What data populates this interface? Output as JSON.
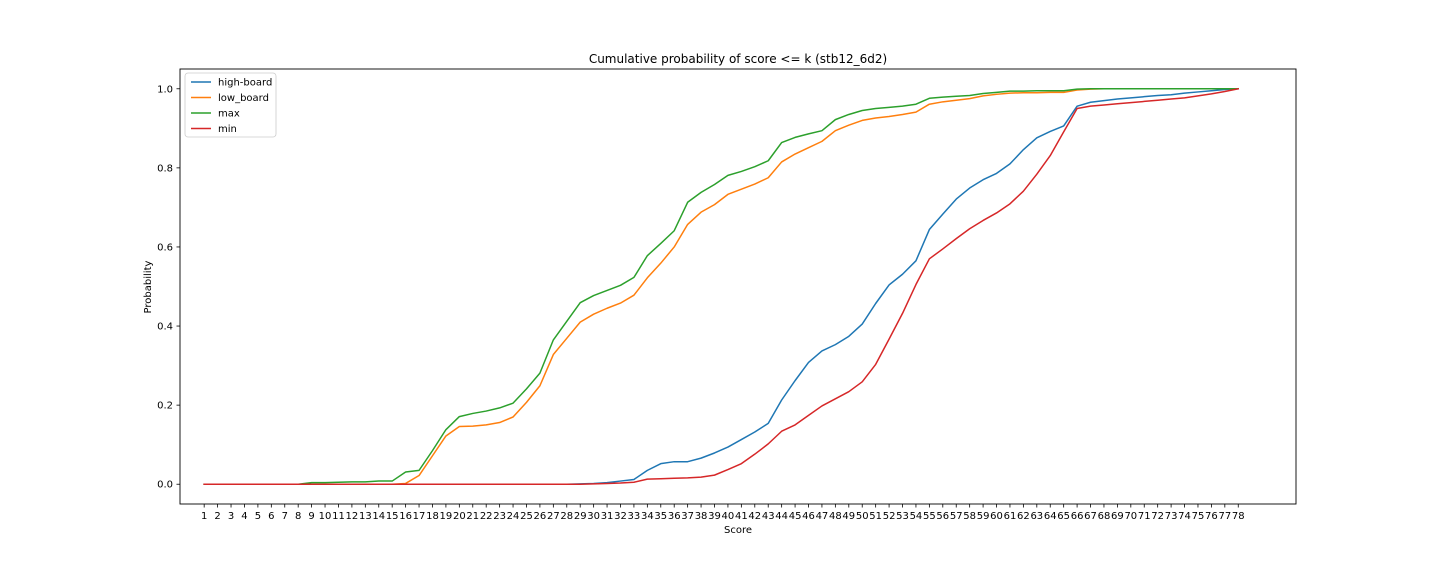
{
  "chart_data": {
    "type": "line",
    "title": "Cumulative probability of score <= k (stb12_6d2)",
    "xlabel": "Score",
    "ylabel": "Probability",
    "x": [
      1,
      2,
      3,
      4,
      5,
      6,
      7,
      8,
      9,
      10,
      11,
      12,
      13,
      14,
      15,
      16,
      17,
      18,
      19,
      20,
      21,
      22,
      23,
      24,
      25,
      26,
      27,
      28,
      29,
      30,
      31,
      32,
      33,
      34,
      35,
      36,
      37,
      38,
      39,
      40,
      41,
      42,
      43,
      44,
      45,
      46,
      47,
      48,
      49,
      50,
      51,
      52,
      53,
      54,
      55,
      56,
      57,
      58,
      59,
      60,
      61,
      62,
      63,
      64,
      65,
      66,
      67,
      68,
      69,
      70,
      71,
      72,
      73,
      74,
      75,
      76,
      77,
      78
    ],
    "xticks": [
      "1",
      "2",
      "3",
      "4",
      "5",
      "6",
      "7",
      "8",
      "9",
      "10",
      "11",
      "12",
      "13",
      "14",
      "15",
      "16",
      "17",
      "18",
      "19",
      "20",
      "21",
      "22",
      "23",
      "24",
      "25",
      "26",
      "27",
      "28",
      "29",
      "30",
      "31",
      "32",
      "33",
      "34",
      "35",
      "36",
      "37",
      "38",
      "39",
      "40",
      "41",
      "42",
      "43",
      "44",
      "45",
      "46",
      "47",
      "48",
      "49",
      "50",
      "51",
      "52",
      "53",
      "54",
      "55",
      "56",
      "57",
      "58",
      "59",
      "60",
      "61",
      "62",
      "63",
      "64",
      "65",
      "66",
      "67",
      "68",
      "69",
      "70",
      "71",
      "72",
      "73",
      "74",
      "75",
      "76",
      "77",
      "78"
    ],
    "yticks": [
      "0.0",
      "0.2",
      "0.4",
      "0.6",
      "0.8",
      "1.0"
    ],
    "ylim": [
      -0.05,
      1.05
    ],
    "xlim": [
      -0.8,
      82.3
    ],
    "grid": false,
    "legend_position": "upper-left",
    "series": [
      {
        "name": "high-board",
        "color": "#1f77b4",
        "values": [
          0,
          0,
          0,
          0,
          0,
          0,
          0,
          0,
          0,
          0,
          0,
          0,
          0,
          0,
          0,
          0,
          0,
          0,
          0,
          0,
          0,
          0,
          0,
          0,
          0,
          0,
          0,
          0,
          0.001,
          0.002,
          0.004,
          0.008,
          0.012,
          0.035,
          0.052,
          0.057,
          0.057,
          0.066,
          0.079,
          0.094,
          0.113,
          0.132,
          0.154,
          0.213,
          0.262,
          0.308,
          0.337,
          0.353,
          0.374,
          0.405,
          0.457,
          0.504,
          0.531,
          0.565,
          0.644,
          0.683,
          0.721,
          0.749,
          0.77,
          0.786,
          0.81,
          0.846,
          0.876,
          0.892,
          0.906,
          0.956,
          0.966,
          0.97,
          0.974,
          0.977,
          0.98,
          0.983,
          0.985,
          0.989,
          0.992,
          0.995,
          0.998,
          1.0
        ]
      },
      {
        "name": "low_board",
        "color": "#ff7f0e",
        "values": [
          0,
          0,
          0,
          0,
          0,
          0,
          0,
          0,
          0,
          0,
          0,
          0,
          0,
          0,
          0,
          0.002,
          0.022,
          0.072,
          0.122,
          0.146,
          0.147,
          0.15,
          0.156,
          0.17,
          0.207,
          0.249,
          0.328,
          0.369,
          0.41,
          0.43,
          0.445,
          0.458,
          0.478,
          0.522,
          0.559,
          0.6,
          0.657,
          0.688,
          0.707,
          0.733,
          0.746,
          0.759,
          0.775,
          0.815,
          0.835,
          0.851,
          0.867,
          0.894,
          0.908,
          0.92,
          0.926,
          0.93,
          0.935,
          0.941,
          0.961,
          0.967,
          0.971,
          0.975,
          0.982,
          0.986,
          0.989,
          0.99,
          0.99,
          0.991,
          0.991,
          0.997,
          0.999,
          1.0,
          1.0,
          1.0,
          1.0,
          1.0,
          1.0,
          1.0,
          1.0,
          1.0,
          1.0,
          1.0
        ]
      },
      {
        "name": "max",
        "color": "#2ca02c",
        "values": [
          0,
          0,
          0,
          0,
          0,
          0,
          0,
          0,
          0.004,
          0.004,
          0.005,
          0.006,
          0.006,
          0.008,
          0.008,
          0.031,
          0.035,
          0.085,
          0.138,
          0.171,
          0.179,
          0.185,
          0.193,
          0.205,
          0.241,
          0.281,
          0.365,
          0.412,
          0.459,
          0.477,
          0.49,
          0.503,
          0.523,
          0.578,
          0.609,
          0.641,
          0.713,
          0.738,
          0.758,
          0.781,
          0.791,
          0.803,
          0.818,
          0.864,
          0.877,
          0.886,
          0.894,
          0.922,
          0.935,
          0.945,
          0.95,
          0.953,
          0.956,
          0.961,
          0.976,
          0.979,
          0.981,
          0.983,
          0.988,
          0.991,
          0.994,
          0.994,
          0.995,
          0.995,
          0.995,
          0.999,
          1.0,
          1.0,
          1.0,
          1.0,
          1.0,
          1.0,
          1.0,
          1.0,
          1.0,
          1.0,
          1.0,
          1.0
        ]
      },
      {
        "name": "min",
        "color": "#d62728",
        "values": [
          0,
          0,
          0,
          0,
          0,
          0,
          0,
          0,
          0,
          0,
          0,
          0,
          0,
          0,
          0,
          0,
          0,
          0,
          0,
          0,
          0,
          0,
          0,
          0,
          0,
          0,
          0,
          0,
          0,
          0.001,
          0.002,
          0.003,
          0.005,
          0.013,
          0.014,
          0.015,
          0.016,
          0.018,
          0.023,
          0.037,
          0.052,
          0.076,
          0.102,
          0.134,
          0.15,
          0.174,
          0.198,
          0.216,
          0.234,
          0.259,
          0.303,
          0.367,
          0.432,
          0.505,
          0.57,
          0.595,
          0.621,
          0.646,
          0.667,
          0.686,
          0.709,
          0.741,
          0.784,
          0.831,
          0.891,
          0.95,
          0.956,
          0.959,
          0.962,
          0.965,
          0.968,
          0.971,
          0.974,
          0.977,
          0.982,
          0.987,
          0.993,
          1.0
        ]
      }
    ]
  }
}
